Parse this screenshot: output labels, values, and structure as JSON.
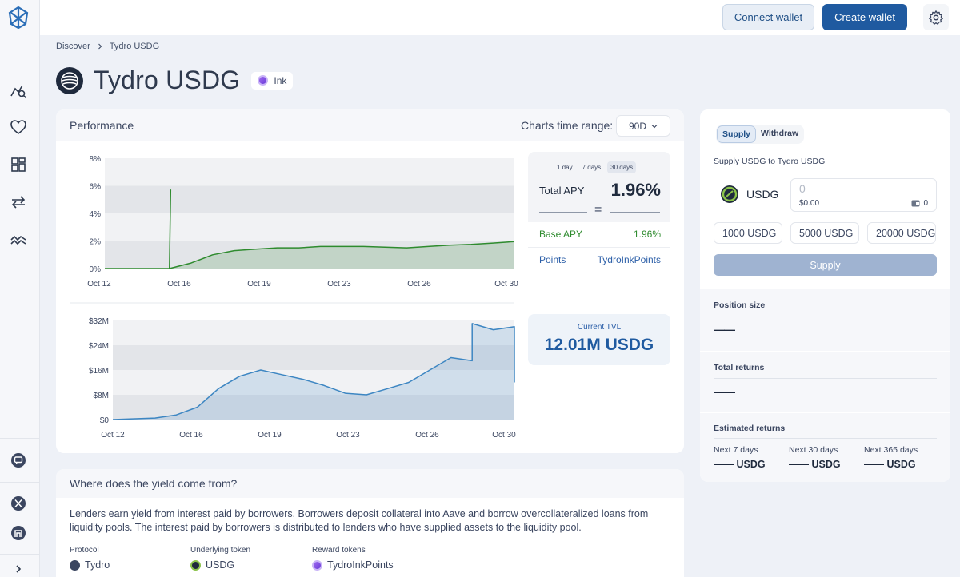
{
  "topbar": {
    "connect_label": "Connect wallet",
    "create_label": "Create wallet"
  },
  "sidebar": {
    "items": [
      {
        "icon": "analytics-icon"
      },
      {
        "icon": "heart-icon"
      },
      {
        "icon": "dashboard-icon"
      },
      {
        "icon": "swap-icon"
      },
      {
        "icon": "chart-wave-icon"
      }
    ],
    "bottom": [
      {
        "icon": "chat-icon"
      },
      {
        "icon": "x-social-icon"
      },
      {
        "icon": "farcaster-icon"
      },
      {
        "icon": "chevron-right-icon"
      }
    ]
  },
  "breadcrumb": {
    "root": "Discover",
    "current": "Tydro USDG"
  },
  "page": {
    "title": "Tydro USDG",
    "chain": "Ink"
  },
  "performance": {
    "title": "Performance",
    "range_label": "Charts time range:",
    "range_value": "90D",
    "apy": {
      "periods": [
        "1 day",
        "7 days",
        "30 days"
      ],
      "active_period": "30 days",
      "total_label": "Total APY",
      "total_value": "1.96%",
      "equals": "=",
      "base_label": "Base APY",
      "base_value": "1.96%",
      "points_label": "Points",
      "points_value": "TydroInkPoints"
    },
    "tvl": {
      "label": "Current TVL",
      "value": "12.01M USDG"
    }
  },
  "chart_data": [
    {
      "type": "area",
      "x_ticks": [
        "Oct 12",
        "Oct 16",
        "Oct 19",
        "Oct 23",
        "Oct 26",
        "Oct 30"
      ],
      "y_ticks": [
        "8%",
        "6%",
        "4%",
        "2%",
        "0%"
      ],
      "ylim": [
        0,
        8
      ],
      "x": [
        "Oct 12",
        "Oct 15",
        "Oct 15",
        "Oct 15",
        "Oct 16",
        "Oct 17",
        "Oct 18",
        "Oct 19",
        "Oct 20",
        "Oct 21",
        "Oct 22",
        "Oct 23",
        "Oct 24",
        "Oct 25",
        "Oct 26",
        "Oct 27",
        "Oct 28",
        "Oct 29",
        "Oct 30",
        "Oct 31"
      ],
      "values": [
        0,
        0,
        5.7,
        0,
        0.4,
        1.0,
        1.3,
        1.4,
        1.5,
        1.5,
        1.6,
        1.6,
        1.6,
        1.55,
        1.5,
        1.6,
        1.7,
        1.75,
        1.85,
        1.96
      ],
      "color": "#2e8b2e",
      "grid": true
    },
    {
      "type": "area",
      "x_ticks": [
        "Oct 12",
        "Oct 16",
        "Oct 19",
        "Oct 23",
        "Oct 26",
        "Oct 30"
      ],
      "y_ticks": [
        "$32M",
        "$24M",
        "$16M",
        "$8M",
        "$0"
      ],
      "ylim": [
        0,
        32
      ],
      "x": [
        "Oct 12",
        "Oct 14",
        "Oct 15",
        "Oct 16",
        "Oct 17",
        "Oct 18",
        "Oct 19",
        "Oct 20",
        "Oct 21",
        "Oct 22",
        "Oct 23",
        "Oct 24",
        "Oct 25",
        "Oct 26",
        "Oct 27",
        "Oct 28",
        "Oct 29",
        "Oct 29",
        "Oct 30",
        "Oct 31",
        "Oct 31"
      ],
      "values": [
        0,
        0.5,
        1.5,
        4,
        10,
        14,
        16,
        14.5,
        13,
        11,
        8.5,
        8,
        10,
        12,
        16,
        20,
        19,
        31,
        29,
        30,
        12
      ],
      "color": "#3d86c2",
      "grid": true
    }
  ],
  "yield_section": {
    "title": "Where does the yield come from?",
    "description": "Lenders earn yield from interest paid by borrowers. Borrowers deposit collateral into Aave and borrow overcollateralized loans from liquidity pools. The interest paid by borrowers is distributed to lenders who have supplied assets to the liquidity pool.",
    "protocol_label": "Protocol",
    "protocol_value": "Tydro",
    "token_label": "Underlying token",
    "token_value": "USDG",
    "reward_label": "Reward tokens",
    "reward_value": "TydroInkPoints"
  },
  "panel": {
    "tabs": [
      "Supply",
      "Withdraw"
    ],
    "active_tab": "Supply",
    "supply_to": "Supply USDG to Tydro USDG",
    "token": "USDG",
    "amount_placeholder": "0",
    "amount_usd": "$0.00",
    "balance": "0",
    "presets": [
      "1000 USDG",
      "5000 USDG",
      "20000 USDG"
    ],
    "supply_button": "Supply",
    "position_label": "Position size",
    "position_value": "——",
    "returns_label": "Total returns",
    "returns_value": "——",
    "estimated_label": "Estimated returns",
    "estimates": [
      {
        "label": "Next 7 days",
        "value": "—— USDG"
      },
      {
        "label": "Next 30 days",
        "value": "—— USDG"
      },
      {
        "label": "Next 365 days",
        "value": "—— USDG"
      }
    ]
  }
}
